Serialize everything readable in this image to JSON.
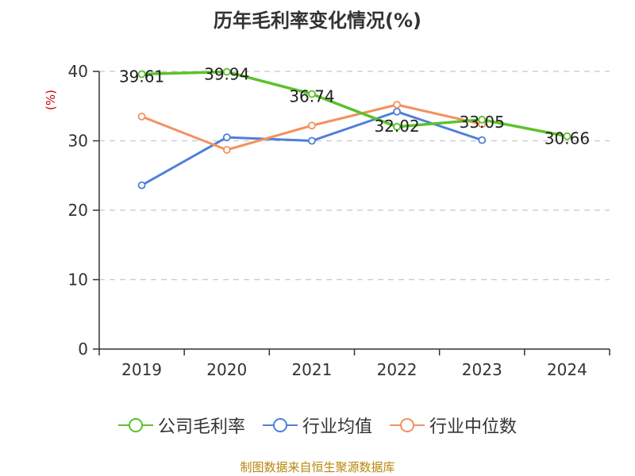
{
  "title": "历年毛利率变化情况(%)",
  "source": "制图数据来自恒生聚源数据库",
  "chart_data": {
    "type": "line",
    "title": "历年毛利率变化情况(%)",
    "ylabel": "(%)",
    "xlabel": "",
    "categories": [
      "2019",
      "2020",
      "2021",
      "2022",
      "2023",
      "2024"
    ],
    "ylim": [
      0,
      40
    ],
    "yticks": [
      "0",
      "10",
      "20",
      "30",
      "40"
    ],
    "grid": true,
    "legend_position": "bottom",
    "series": [
      {
        "name": "公司毛利率",
        "color": "#5cc22a",
        "values": [
          39.61,
          39.94,
          36.74,
          32.02,
          33.05,
          30.66
        ],
        "labels": [
          "39.61",
          "39.94",
          "36.74",
          "32.02",
          "33.05",
          "30.66"
        ]
      },
      {
        "name": "行业均值",
        "color": "#4e7fdb",
        "values": [
          23.6,
          30.5,
          30.0,
          34.2,
          30.1,
          null
        ]
      },
      {
        "name": "行业中位数",
        "color": "#f3915e",
        "values": [
          33.5,
          28.7,
          32.2,
          35.2,
          32.4,
          null
        ]
      }
    ]
  }
}
